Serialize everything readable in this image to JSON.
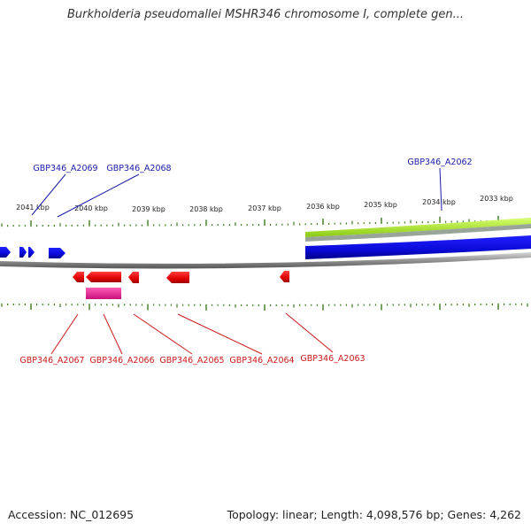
{
  "title": "Burkholderia pseudomallei MSHR346 chromosome I, complete gen...",
  "footer": {
    "accession": "Accession: NC_012695",
    "summary": "Topology: linear; Length: 4,098,576 bp; Genes: 4,262"
  },
  "colors": {
    "forward_gene": "#1010e0",
    "reverse_gene": "#e81010",
    "forward_label": "#1a1aa8",
    "reverse_label": "#cc1a1a",
    "tick": "#3a7a1a",
    "backbone": "#8a8a8a",
    "lime_track": "#a0e020",
    "magenta_track": "#e0158a"
  },
  "ruler": {
    "unit": "kbp",
    "labels": [
      {
        "kbp": 2041,
        "text": "2041 kbp"
      },
      {
        "kbp": 2040,
        "text": "2040 kbp"
      },
      {
        "kbp": 2039,
        "text": "2039 kbp"
      },
      {
        "kbp": 2038,
        "text": "2038 kbp"
      },
      {
        "kbp": 2037,
        "text": "2037 kbp"
      },
      {
        "kbp": 2036,
        "text": "2036 kbp"
      },
      {
        "kbp": 2035,
        "text": "2035 kbp"
      },
      {
        "kbp": 2034,
        "text": "2034 kbp"
      },
      {
        "kbp": 2033,
        "text": "2033 kbp"
      }
    ]
  },
  "genes_forward": [
    {
      "label": "GBP346_A2069"
    },
    {
      "label": "GBP346_A2068"
    },
    {
      "label": "GBP346_A2062"
    }
  ],
  "genes_reverse": [
    {
      "label": "GBP346_A2067"
    },
    {
      "label": "GBP346_A2066"
    },
    {
      "label": "GBP346_A2065"
    },
    {
      "label": "GBP346_A2064"
    },
    {
      "label": "GBP346_A2063"
    }
  ]
}
